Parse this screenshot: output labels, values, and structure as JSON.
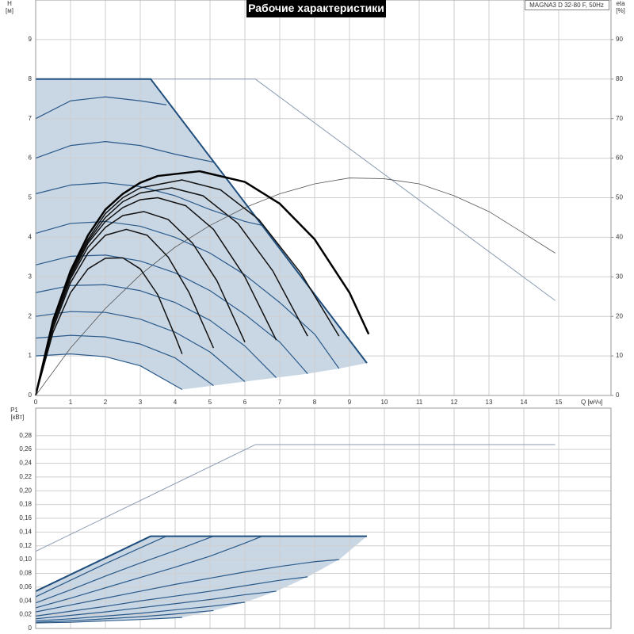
{
  "chart_data": [
    {
      "type": "line",
      "title": "Рабочие характеристики",
      "annotation": "MAGNA3 D 32-80 F, 50Hz",
      "xlabel": "Q [м³/ч]",
      "ylabel": "H",
      "yunit": "[м]",
      "y2label": "eta",
      "y2unit": "[%]",
      "xlim": [
        0,
        16.5
      ],
      "ylim": [
        0,
        10
      ],
      "y2lim": [
        0,
        100
      ],
      "grid": true,
      "xtick_labels": true,
      "xticks": [
        0,
        1,
        2,
        3,
        4,
        5,
        6,
        7,
        8,
        9,
        10,
        11,
        12,
        13,
        14,
        15
      ],
      "yticks": [
        0,
        1,
        2,
        3,
        4,
        5,
        6,
        7,
        8,
        9
      ],
      "y2ticks": [
        0,
        10,
        20,
        30,
        40,
        50,
        60,
        70,
        80,
        90
      ],
      "area": {
        "color": "#c9d6e4",
        "x": [
          0,
          3.3,
          9.5,
          8.7,
          7.8,
          6.9,
          6,
          5.1,
          4.2,
          3,
          2,
          1,
          0
        ],
        "values": [
          8,
          8,
          0.82,
          0.68,
          0.55,
          0.45,
          0.35,
          0.25,
          0.15,
          0.75,
          0.98,
          1.05,
          1.0
        ]
      },
      "series": [
        {
          "color": "#8a9ab2",
          "linewidth": 1,
          "x": [
            0,
            6.3,
            14.9
          ],
          "values": [
            8,
            8,
            2.4
          ]
        },
        {
          "color": "#555555",
          "linewidth": 0.8,
          "axis": "y2",
          "x": [
            0,
            1,
            2,
            3,
            4,
            5,
            6,
            7,
            8,
            9,
            10,
            11,
            12,
            13,
            14,
            14.9
          ],
          "values": [
            0,
            12,
            22,
            30.5,
            37.5,
            43,
            47.5,
            51,
            53.5,
            55,
            54.8,
            53.5,
            50.5,
            46.5,
            41,
            36
          ]
        },
        {
          "color": "#2a5a8a",
          "linewidth": 1.2,
          "x": [
            0,
            1,
            2,
            3,
            3.75
          ],
          "values": [
            7.0,
            7.45,
            7.55,
            7.45,
            7.35
          ]
        },
        {
          "color": "#2a5a8a",
          "linewidth": 1.2,
          "x": [
            0,
            1,
            2,
            3,
            4,
            5.1
          ],
          "values": [
            6.0,
            6.32,
            6.42,
            6.32,
            6.1,
            5.9
          ]
        },
        {
          "color": "#2a5a8a",
          "linewidth": 1.2,
          "x": [
            0,
            1,
            2,
            3,
            4,
            5,
            6,
            6.5
          ],
          "values": [
            5.1,
            5.32,
            5.38,
            5.28,
            5.05,
            4.7,
            4.4,
            4.3
          ]
        },
        {
          "color": "#2a5a8a",
          "linewidth": 1.2,
          "x": [
            0,
            1,
            2,
            3,
            4,
            5,
            6,
            7,
            8,
            8.7
          ],
          "values": [
            4.1,
            4.35,
            4.4,
            4.28,
            4.0,
            3.6,
            3.05,
            2.35,
            1.55,
            0.68
          ]
        },
        {
          "color": "#2a5a8a",
          "linewidth": 1.2,
          "x": [
            0,
            1,
            2,
            3,
            4,
            5,
            6,
            7,
            7.8
          ],
          "values": [
            3.3,
            3.52,
            3.55,
            3.4,
            3.1,
            2.65,
            2.05,
            1.35,
            0.55
          ]
        },
        {
          "color": "#2a5a8a",
          "linewidth": 1.2,
          "x": [
            0,
            1,
            2,
            3,
            4,
            5,
            6,
            6.9
          ],
          "values": [
            2.6,
            2.78,
            2.8,
            2.65,
            2.35,
            1.9,
            1.25,
            0.45
          ]
        },
        {
          "color": "#2a5a8a",
          "linewidth": 1.2,
          "x": [
            0,
            1,
            2,
            3,
            4,
            5,
            6
          ],
          "values": [
            2.0,
            2.12,
            2.1,
            1.93,
            1.6,
            1.1,
            0.35
          ]
        },
        {
          "color": "#2a5a8a",
          "linewidth": 1.2,
          "x": [
            0,
            1,
            2,
            3,
            4,
            5.1
          ],
          "values": [
            1.45,
            1.52,
            1.48,
            1.3,
            0.95,
            0.25
          ]
        },
        {
          "color": "#2a5a8a",
          "linewidth": 1.2,
          "x": [
            0,
            1,
            2,
            3,
            4.2
          ],
          "values": [
            1.0,
            1.05,
            0.98,
            0.75,
            0.15
          ]
        },
        {
          "color": "#1f4e7d",
          "linewidth": 2,
          "x": [
            0,
            3.3,
            9.5
          ],
          "values": [
            8,
            8,
            0.82
          ]
        },
        {
          "color": "#111111",
          "linewidth": 1.5,
          "x": [
            0,
            0.5,
            1,
            1.5,
            2,
            2.5,
            3,
            3.5,
            4,
            4.2
          ],
          "values": [
            0,
            1.6,
            2.6,
            3.2,
            3.47,
            3.48,
            3.2,
            2.55,
            1.5,
            1.05
          ]
        },
        {
          "color": "#111111",
          "linewidth": 1.5,
          "x": [
            0,
            0.5,
            1,
            1.5,
            2,
            2.6,
            3.2,
            3.8,
            4.4,
            5.1
          ],
          "values": [
            0,
            1.7,
            2.85,
            3.6,
            4.05,
            4.2,
            4.05,
            3.5,
            2.6,
            1.2
          ]
        },
        {
          "color": "#111111",
          "linewidth": 1.5,
          "x": [
            0,
            0.5,
            1,
            1.5,
            2,
            2.5,
            3.1,
            3.8,
            4.5,
            5.2,
            6
          ],
          "values": [
            0,
            1.75,
            2.95,
            3.75,
            4.25,
            4.55,
            4.65,
            4.45,
            3.85,
            2.9,
            1.35
          ]
        },
        {
          "color": "#111111",
          "linewidth": 1.5,
          "x": [
            0,
            0.5,
            1,
            1.5,
            2,
            2.5,
            3,
            3.5,
            4.3,
            5.1,
            6,
            6.9
          ],
          "values": [
            0,
            1.8,
            3.0,
            3.85,
            4.4,
            4.75,
            4.95,
            5.0,
            4.8,
            4.2,
            3.0,
            1.4
          ]
        },
        {
          "color": "#111111",
          "linewidth": 1.5,
          "x": [
            0,
            0.5,
            1,
            1.5,
            2,
            2.5,
            3,
            3.9,
            4.8,
            5.8,
            6.8,
            7.8
          ],
          "values": [
            0,
            1.8,
            3.05,
            3.9,
            4.5,
            4.9,
            5.12,
            5.25,
            5.05,
            4.35,
            3.15,
            1.5
          ]
        },
        {
          "color": "#111111",
          "linewidth": 1.5,
          "x": [
            0,
            0.5,
            1,
            1.5,
            2,
            2.5,
            3,
            4.2,
            5.3,
            6.4,
            7.6,
            8.7
          ],
          "values": [
            0,
            1.85,
            3.1,
            3.95,
            4.6,
            5.0,
            5.25,
            5.45,
            5.2,
            4.45,
            3.1,
            1.5
          ]
        },
        {
          "color": "#000000",
          "linewidth": 2.5,
          "x": [
            0,
            0.5,
            1,
            1.5,
            2,
            2.5,
            3,
            3.5,
            4.7,
            6,
            7,
            8,
            9,
            9.55
          ],
          "values": [
            0,
            1.9,
            3.15,
            4.05,
            4.7,
            5.1,
            5.38,
            5.55,
            5.67,
            5.4,
            4.85,
            3.95,
            2.6,
            1.55
          ]
        }
      ]
    },
    {
      "type": "line",
      "ylabel": "P1",
      "yunit": "[кВт]",
      "xlim": [
        0,
        16.5
      ],
      "ylim": [
        0,
        0.32
      ],
      "grid": true,
      "xtick_labels": false,
      "xticks": [
        0,
        1,
        2,
        3,
        4,
        5,
        6,
        7,
        8,
        9,
        10,
        11,
        12,
        13,
        14,
        15
      ],
      "yticks": [
        0,
        {
          "value": 0.02,
          "label": "0,02"
        },
        {
          "value": 0.04,
          "label": "0,04"
        },
        {
          "value": 0.06,
          "label": "0,06"
        },
        {
          "value": 0.08,
          "label": "0,08"
        },
        {
          "value": 0.1,
          "label": "0,10"
        },
        {
          "value": 0.12,
          "label": "0,12"
        },
        {
          "value": 0.14,
          "label": "0,14"
        },
        {
          "value": 0.16,
          "label": "0,16"
        },
        {
          "value": 0.18,
          "label": "0,18"
        },
        {
          "value": 0.2,
          "label": "0,20"
        },
        {
          "value": 0.22,
          "label": "0,22"
        },
        {
          "value": 0.24,
          "label": "0,24"
        },
        {
          "value": 0.26,
          "label": "0,26"
        },
        {
          "value": 0.28,
          "label": "0,28"
        }
      ],
      "area": {
        "color": "#c9d6e4",
        "x": [
          0,
          3.3,
          9.5,
          8.7,
          7.8,
          6.9,
          6,
          5.1,
          4.2,
          0
        ],
        "values": [
          0.054,
          0.134,
          0.134,
          0.1,
          0.075,
          0.054,
          0.038,
          0.026,
          0.016,
          0.008
        ]
      },
      "series": [
        {
          "color": "#8a9ab2",
          "linewidth": 1,
          "x": [
            0,
            6.3,
            14.9
          ],
          "values": [
            0.112,
            0.267,
            0.267
          ]
        },
        {
          "color": "#2a5a8a",
          "linewidth": 1.2,
          "x": [
            0,
            1,
            2,
            3,
            3.75
          ],
          "values": [
            0.046,
            0.07,
            0.094,
            0.117,
            0.134
          ]
        },
        {
          "color": "#2a5a8a",
          "linewidth": 1.2,
          "x": [
            0,
            1,
            2,
            3,
            4,
            5.1
          ],
          "values": [
            0.037,
            0.056,
            0.076,
            0.095,
            0.113,
            0.134
          ]
        },
        {
          "color": "#2a5a8a",
          "linewidth": 1.2,
          "x": [
            0,
            1,
            2,
            3,
            4,
            5,
            6,
            6.5
          ],
          "values": [
            0.03,
            0.044,
            0.059,
            0.074,
            0.089,
            0.105,
            0.124,
            0.134
          ]
        },
        {
          "color": "#2a5a8a",
          "linewidth": 1.2,
          "x": [
            0,
            1,
            2,
            3,
            4,
            5,
            6,
            7,
            8,
            8.7
          ],
          "values": [
            0.024,
            0.034,
            0.044,
            0.054,
            0.064,
            0.073,
            0.082,
            0.09,
            0.097,
            0.1
          ]
        },
        {
          "color": "#2a5a8a",
          "linewidth": 1.2,
          "x": [
            0,
            1,
            2,
            3,
            4,
            5,
            6,
            7,
            7.8
          ],
          "values": [
            0.018,
            0.025,
            0.032,
            0.04,
            0.047,
            0.054,
            0.062,
            0.07,
            0.075
          ]
        },
        {
          "color": "#2a5a8a",
          "linewidth": 1.2,
          "x": [
            0,
            1,
            2,
            3,
            4,
            5,
            6,
            6.9
          ],
          "values": [
            0.014,
            0.019,
            0.024,
            0.03,
            0.036,
            0.042,
            0.049,
            0.054
          ]
        },
        {
          "color": "#2a5a8a",
          "linewidth": 1.2,
          "x": [
            0,
            1,
            2,
            3,
            4,
            5,
            6
          ],
          "values": [
            0.011,
            0.014,
            0.018,
            0.022,
            0.027,
            0.032,
            0.038
          ]
        },
        {
          "color": "#2a5a8a",
          "linewidth": 1.2,
          "x": [
            0,
            1,
            2,
            3,
            4,
            5.1
          ],
          "values": [
            0.009,
            0.011,
            0.014,
            0.017,
            0.021,
            0.026
          ]
        },
        {
          "color": "#2a5a8a",
          "linewidth": 1.2,
          "x": [
            0,
            1,
            2,
            3,
            4.2
          ],
          "values": [
            0.008,
            0.009,
            0.011,
            0.013,
            0.016
          ]
        },
        {
          "color": "#1f4e7d",
          "linewidth": 2,
          "x": [
            0,
            3.3,
            9.5
          ],
          "values": [
            0.054,
            0.134,
            0.134
          ]
        }
      ]
    }
  ]
}
